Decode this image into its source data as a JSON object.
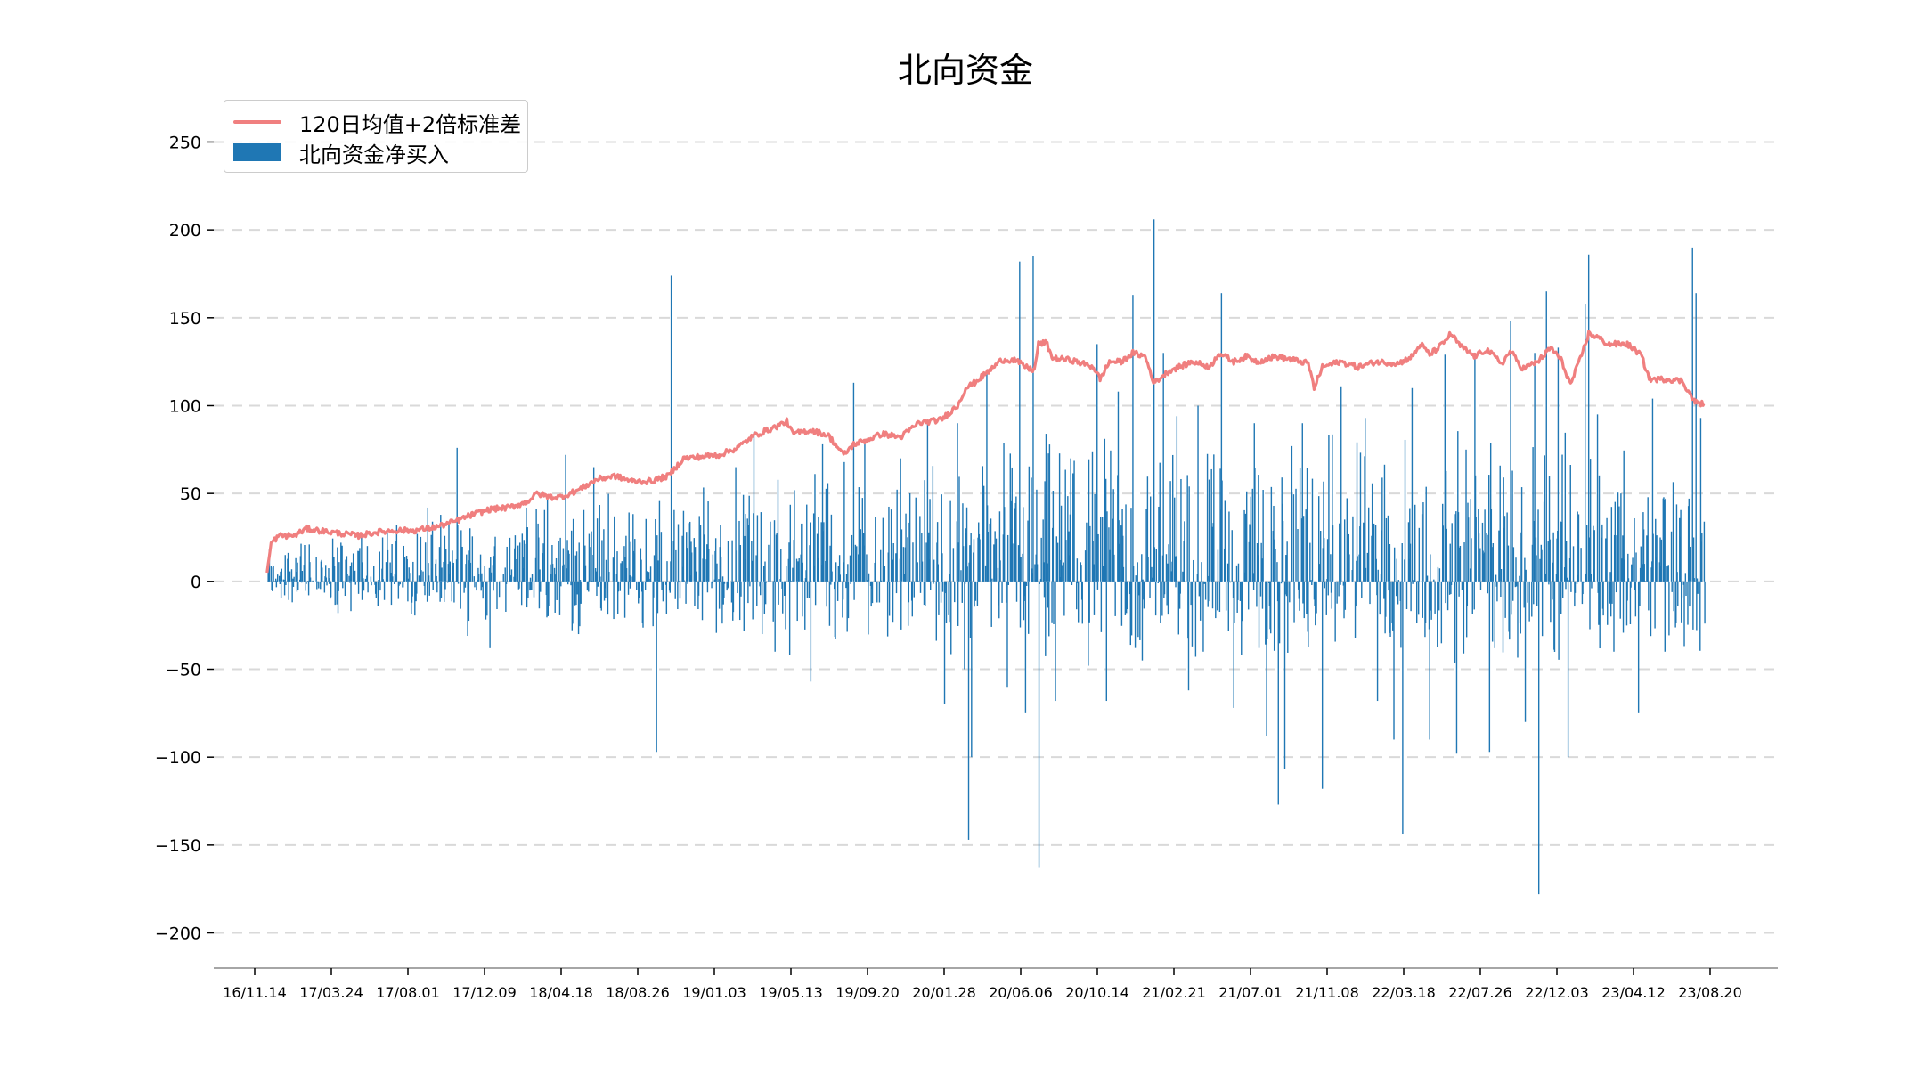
{
  "chart_data": {
    "type": "bar",
    "title": "北向资金",
    "xlabel": "",
    "ylabel": "",
    "ylim": [
      -220,
      270
    ],
    "yticks": [
      -200,
      -150,
      -100,
      -50,
      0,
      50,
      100,
      150,
      200,
      250
    ],
    "ytick_labels": [
      "−200",
      "−150",
      "−100",
      "−50",
      "0",
      "50",
      "100",
      "150",
      "200",
      "250"
    ],
    "grid": "horizontal-dashed",
    "legend_position": "top-left",
    "x_range": [
      "2016-11-14",
      "2023-08-31"
    ],
    "xtick_labels": [
      "16/11.14",
      "17/03.24",
      "17/08.01",
      "17/12.09",
      "18/04.18",
      "18/08.26",
      "19/01.03",
      "19/05.13",
      "19/09.20",
      "20/01.28",
      "20/06.06",
      "20/10.14",
      "21/02.21",
      "21/07.01",
      "21/11.08",
      "22/03.18",
      "22/07.26",
      "22/12.03",
      "23/04.12",
      "23/08.20"
    ],
    "colors": {
      "bars": "#1f77b4",
      "band_line": "#f07f7f",
      "grid": "#d9d9d9",
      "axis": "#888888"
    },
    "series": [
      {
        "name": "120日均值+2倍标准差",
        "kind": "line",
        "points": [
          [
            "2016-12-05",
            5
          ],
          [
            "2016-12-12",
            22
          ],
          [
            "2016-12-26",
            26
          ],
          [
            "2017-01-20",
            26
          ],
          [
            "2017-02-10",
            30
          ],
          [
            "2017-03-24",
            28
          ],
          [
            "2017-05-10",
            26
          ],
          [
            "2017-06-10",
            28
          ],
          [
            "2017-07-10",
            29
          ],
          [
            "2017-08-15",
            29
          ],
          [
            "2017-09-20",
            31
          ],
          [
            "2017-10-20",
            34
          ],
          [
            "2017-11-20",
            38
          ],
          [
            "2017-12-20",
            41
          ],
          [
            "2018-01-20",
            42
          ],
          [
            "2018-02-20",
            45
          ],
          [
            "2018-03-10",
            50
          ],
          [
            "2018-04-01",
            48
          ],
          [
            "2018-04-20",
            48
          ],
          [
            "2018-05-20",
            52
          ],
          [
            "2018-06-20",
            58
          ],
          [
            "2018-07-20",
            60
          ],
          [
            "2018-08-20",
            57
          ],
          [
            "2018-09-20",
            57
          ],
          [
            "2018-10-20",
            60
          ],
          [
            "2018-11-15",
            70
          ],
          [
            "2018-12-15",
            71
          ],
          [
            "2019-01-15",
            72
          ],
          [
            "2019-02-15",
            76
          ],
          [
            "2019-03-15",
            83
          ],
          [
            "2019-04-15",
            87
          ],
          [
            "2019-05-10",
            91
          ],
          [
            "2019-05-20",
            84
          ],
          [
            "2019-06-20",
            86
          ],
          [
            "2019-07-20",
            83
          ],
          [
            "2019-08-15",
            72
          ],
          [
            "2019-09-01",
            78
          ],
          [
            "2019-09-20",
            80
          ],
          [
            "2019-10-20",
            84
          ],
          [
            "2019-11-20",
            82
          ],
          [
            "2019-12-20",
            90
          ],
          [
            "2020-01-28",
            92
          ],
          [
            "2020-02-25",
            100
          ],
          [
            "2020-03-10",
            110
          ],
          [
            "2020-03-25",
            113
          ],
          [
            "2020-04-20",
            120
          ],
          [
            "2020-05-10",
            126
          ],
          [
            "2020-06-01",
            126
          ],
          [
            "2020-06-20",
            122
          ],
          [
            "2020-07-05",
            120
          ],
          [
            "2020-07-12",
            135
          ],
          [
            "2020-07-25",
            136
          ],
          [
            "2020-08-05",
            127
          ],
          [
            "2020-09-05",
            126
          ],
          [
            "2020-10-14",
            122
          ],
          [
            "2020-10-25",
            115
          ],
          [
            "2020-11-10",
            125
          ],
          [
            "2020-12-01",
            125
          ],
          [
            "2020-12-20",
            130
          ],
          [
            "2021-01-10",
            128
          ],
          [
            "2021-01-25",
            113
          ],
          [
            "2021-02-21",
            120
          ],
          [
            "2021-04-01",
            125
          ],
          [
            "2021-05-01",
            122
          ],
          [
            "2021-05-15",
            130
          ],
          [
            "2021-06-10",
            125
          ],
          [
            "2021-07-01",
            128
          ],
          [
            "2021-07-20",
            125
          ],
          [
            "2021-08-20",
            128
          ],
          [
            "2021-09-20",
            126
          ],
          [
            "2021-10-15",
            124
          ],
          [
            "2021-10-25",
            110
          ],
          [
            "2021-11-08",
            122
          ],
          [
            "2021-12-08",
            125
          ],
          [
            "2022-01-08",
            122
          ],
          [
            "2022-02-08",
            125
          ],
          [
            "2022-03-18",
            124
          ],
          [
            "2022-04-10",
            128
          ],
          [
            "2022-04-25",
            135
          ],
          [
            "2022-05-10",
            129
          ],
          [
            "2022-06-01",
            135
          ],
          [
            "2022-06-15",
            141
          ],
          [
            "2022-07-01",
            134
          ],
          [
            "2022-07-26",
            128
          ],
          [
            "2022-08-15",
            132
          ],
          [
            "2022-09-10",
            124
          ],
          [
            "2022-09-25",
            131
          ],
          [
            "2022-10-15",
            121
          ],
          [
            "2022-11-10",
            125
          ],
          [
            "2022-12-03",
            133
          ],
          [
            "2022-12-20",
            126
          ],
          [
            "2023-01-05",
            112
          ],
          [
            "2023-01-20",
            125
          ],
          [
            "2023-02-05",
            141
          ],
          [
            "2023-02-20",
            139
          ],
          [
            "2023-03-10",
            135
          ],
          [
            "2023-04-12",
            135
          ],
          [
            "2023-05-05",
            129
          ],
          [
            "2023-05-20",
            115
          ],
          [
            "2023-06-20",
            115
          ],
          [
            "2023-07-15",
            114
          ],
          [
            "2023-07-25",
            108
          ],
          [
            "2023-08-05",
            102
          ],
          [
            "2023-08-20",
            101
          ]
        ]
      },
      {
        "name": "北向资金净买入",
        "kind": "bar",
        "peaks": [
          [
            "2016-12-07",
            8
          ],
          [
            "2017-01-05",
            15
          ],
          [
            "2017-02-15",
            21
          ],
          [
            "2017-04-05",
            -18
          ],
          [
            "2017-06-20",
            25
          ],
          [
            "2017-09-05",
            42
          ],
          [
            "2017-10-25",
            76
          ],
          [
            "2017-11-12",
            -31
          ],
          [
            "2017-12-20",
            -38
          ],
          [
            "2018-02-20",
            42
          ],
          [
            "2018-04-28",
            72
          ],
          [
            "2018-05-20",
            -30
          ],
          [
            "2018-06-15",
            65
          ],
          [
            "2018-07-20",
            37
          ],
          [
            "2018-09-30",
            -97
          ],
          [
            "2018-10-25",
            174
          ],
          [
            "2019-01-20",
            -24
          ],
          [
            "2019-02-12",
            65
          ],
          [
            "2019-02-26",
            -28
          ],
          [
            "2019-03-15",
            85
          ],
          [
            "2019-04-20",
            -40
          ],
          [
            "2019-05-15",
            -42
          ],
          [
            "2019-06-20",
            -57
          ],
          [
            "2019-07-10",
            78
          ],
          [
            "2019-08-01",
            -33
          ],
          [
            "2019-09-01",
            113
          ],
          [
            "2019-09-20",
            80
          ],
          [
            "2019-10-15",
            -12
          ],
          [
            "2019-11-20",
            70
          ],
          [
            "2019-12-10",
            -20
          ],
          [
            "2020-01-05",
            90
          ],
          [
            "2020-02-03",
            -70
          ],
          [
            "2020-02-25",
            90
          ],
          [
            "2020-03-08",
            -50
          ],
          [
            "2020-03-15",
            -147
          ],
          [
            "2020-03-20",
            -100
          ],
          [
            "2020-04-15",
            120
          ],
          [
            "2020-05-20",
            -60
          ],
          [
            "2020-06-10",
            182
          ],
          [
            "2020-06-20",
            -75
          ],
          [
            "2020-07-03",
            185
          ],
          [
            "2020-07-13",
            -163
          ],
          [
            "2020-07-25",
            84
          ],
          [
            "2020-08-10",
            -68
          ],
          [
            "2020-09-05",
            70
          ],
          [
            "2020-10-05",
            -48
          ],
          [
            "2020-10-20",
            135
          ],
          [
            "2020-11-05",
            -68
          ],
          [
            "2020-11-25",
            108
          ],
          [
            "2020-12-20",
            163
          ],
          [
            "2021-01-05",
            -45
          ],
          [
            "2021-01-25",
            206
          ],
          [
            "2021-02-10",
            130
          ],
          [
            "2021-03-05",
            94
          ],
          [
            "2021-03-25",
            -62
          ],
          [
            "2021-04-10",
            100
          ],
          [
            "2021-05-20",
            164
          ],
          [
            "2021-06-10",
            -72
          ],
          [
            "2021-07-15",
            90
          ],
          [
            "2021-08-05",
            -88
          ],
          [
            "2021-08-25",
            -127
          ],
          [
            "2021-09-05",
            -107
          ],
          [
            "2021-10-05",
            90
          ],
          [
            "2021-11-08",
            -118
          ],
          [
            "2021-12-10",
            111
          ],
          [
            "2022-01-20",
            93
          ],
          [
            "2022-02-10",
            -68
          ],
          [
            "2022-03-10",
            -90
          ],
          [
            "2022-03-25",
            -144
          ],
          [
            "2022-04-10",
            110
          ],
          [
            "2022-05-10",
            -90
          ],
          [
            "2022-06-05",
            129
          ],
          [
            "2022-06-25",
            -98
          ],
          [
            "2022-07-26",
            128
          ],
          [
            "2022-08-20",
            -97
          ],
          [
            "2022-09-25",
            148
          ],
          [
            "2022-10-20",
            -80
          ],
          [
            "2022-11-05",
            130
          ],
          [
            "2022-11-12",
            -178
          ],
          [
            "2022-11-25",
            165
          ],
          [
            "2022-12-15",
            133
          ],
          [
            "2023-01-01",
            -100
          ],
          [
            "2023-01-30",
            158
          ],
          [
            "2023-02-05",
            186
          ],
          [
            "2023-02-20",
            95
          ],
          [
            "2023-03-20",
            -40
          ],
          [
            "2023-04-01",
            50
          ],
          [
            "2023-05-01",
            -75
          ],
          [
            "2023-05-25",
            104
          ],
          [
            "2023-06-15",
            -40
          ],
          [
            "2023-07-10",
            36
          ],
          [
            "2023-08-01",
            190
          ],
          [
            "2023-08-07",
            164
          ],
          [
            "2023-08-15",
            93
          ],
          [
            "2023-08-22",
            -24
          ]
        ]
      }
    ]
  }
}
